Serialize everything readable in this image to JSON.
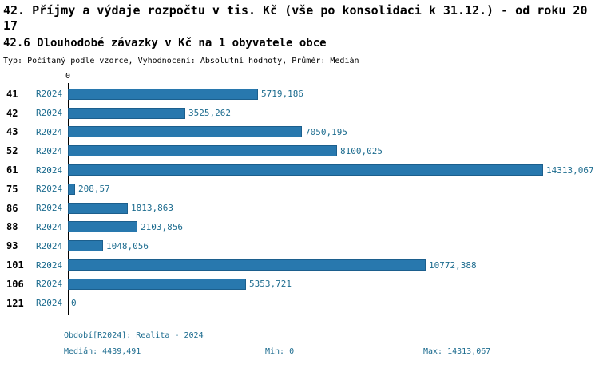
{
  "header": {
    "title": "42. Příjmy a výdaje rozpočtu v tis. Kč (vše po konsolidaci k 31.12.) - od roku 2017",
    "subtitle": "42.6 Dlouhodobé závazky v Kč na 1 obyvatele obce",
    "meta": "Typ: Počítaný podle vzorce, Vyhodnocení: Absolutní hodnoty, Průměr: Medián"
  },
  "chart_data": {
    "type": "bar",
    "orientation": "horizontal",
    "title": "42.6 Dlouhodobé závazky v Kč na 1 obyvatele obce",
    "axis_zero_label": "0",
    "series_label": "R2024",
    "categories": [
      "41",
      "42",
      "43",
      "52",
      "61",
      "75",
      "86",
      "88",
      "93",
      "101",
      "106",
      "121"
    ],
    "values": [
      5719.186,
      3525.262,
      7050.195,
      8100.025,
      14313.067,
      208.57,
      1813.863,
      2103.856,
      1048.056,
      10772.388,
      5353.721,
      0
    ],
    "value_labels": [
      "5719,186",
      "3525,262",
      "7050,195",
      "8100,025",
      "14313,067",
      "208,57",
      "1813,863",
      "2103,856",
      "1048,056",
      "10772,388",
      "5353,721",
      "0"
    ],
    "xlim": [
      0,
      14313.067
    ],
    "median_value": 4439.491,
    "bar_color": "#2878ae",
    "median_line_color": "#2878ae",
    "grid": false,
    "legend": false
  },
  "footer": {
    "period": "Období[R2024]: Realita - 2024",
    "median": "Medián: 4439,491",
    "min": "Min: 0",
    "max": "Max: 14313,067"
  }
}
